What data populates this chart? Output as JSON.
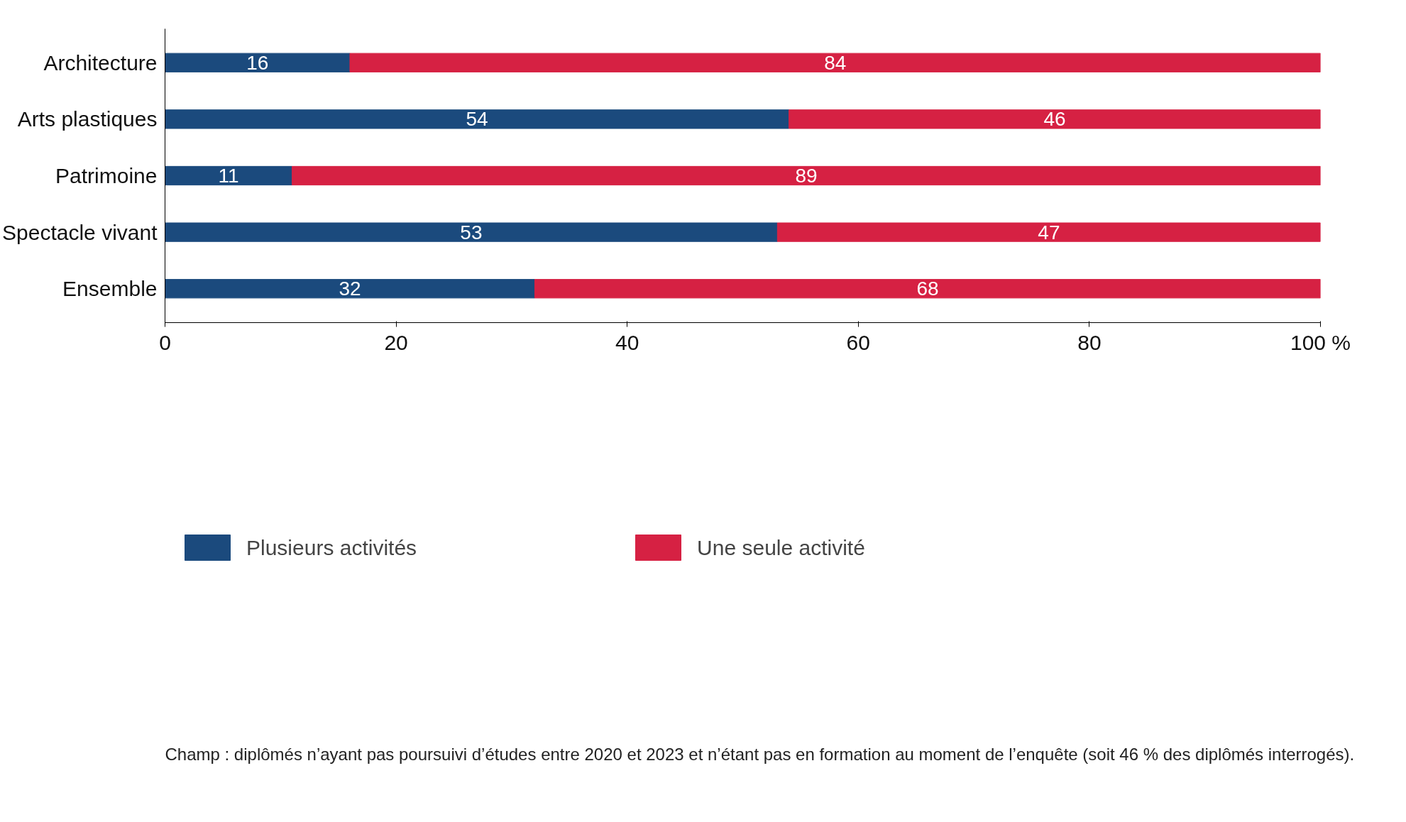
{
  "chart_data": {
    "type": "bar",
    "orientation": "horizontal",
    "stacked": true,
    "categories": [
      "Architecture",
      "Arts plastiques",
      "Patrimoine",
      "Spectacle vivant",
      "Ensemble"
    ],
    "series": [
      {
        "name": "Plusieurs activités",
        "color": "#1b4a7d",
        "values": [
          16,
          54,
          11,
          53,
          32
        ]
      },
      {
        "name": "Une seule activité",
        "color": "#d62143",
        "values": [
          84,
          46,
          89,
          47,
          68
        ]
      }
    ],
    "xlim": [
      0,
      100
    ],
    "xticks": [
      0,
      20,
      40,
      60,
      80,
      {
        "value": 100,
        "label": "100 %"
      }
    ],
    "data_labels": true,
    "legend": "bottom",
    "grid": false,
    "annotations": [
      "Champ : diplômés n’ayant pas poursuivi d’études entre 2020 et 2023 et n’étant pas en formation au moment de l’enquête (soit 46 % des diplômés interrogés)."
    ]
  }
}
